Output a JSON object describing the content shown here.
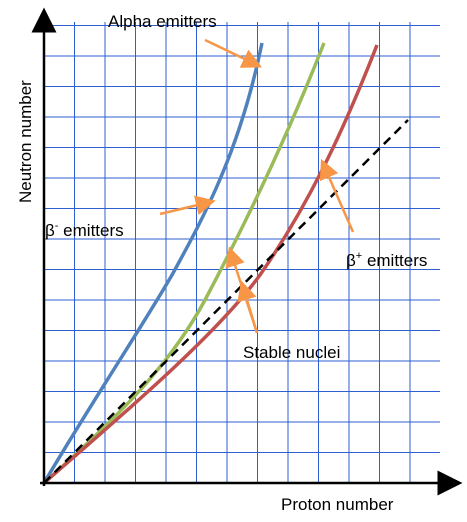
{
  "axes": {
    "x_label": "Proton number",
    "y_label": "Neutron number"
  },
  "labels": {
    "alpha": "Alpha emitters",
    "beta_minus_symbol": "β",
    "beta_minus_sup": "-",
    "beta_minus_text": " emitters",
    "beta_plus_symbol": "β",
    "beta_plus_sup": "+",
    "beta_plus_text": " emitters",
    "stable": "Stable nuclei"
  },
  "colors": {
    "grid": "#2f5fd0",
    "alpha_curve": "#4f81bd",
    "stable_curve": "#9bbb59",
    "beta_plus_curve": "#c0504d",
    "reference_line": "#000000",
    "arrows": "#f79646"
  },
  "grid": {
    "visible": true
  }
}
